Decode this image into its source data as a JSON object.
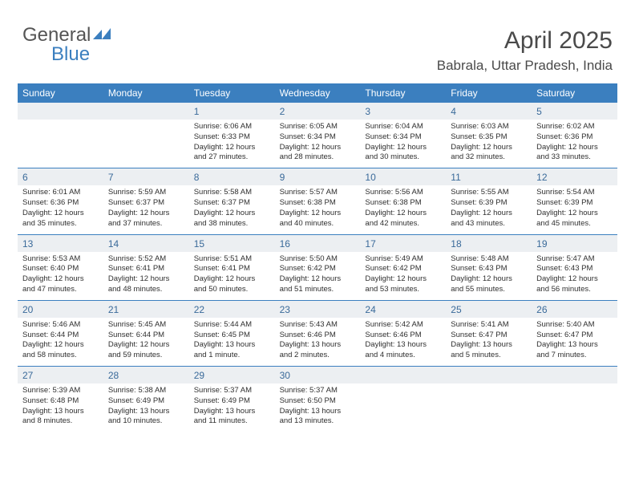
{
  "logo": {
    "text1": "General",
    "text2": "Blue",
    "icon_color": "#3b7fbf"
  },
  "header": {
    "title": "April 2025",
    "subtitle": "Babrala, Uttar Pradesh, India"
  },
  "colors": {
    "header_bar": "#3b7fbf",
    "num_bg": "#eceff2",
    "daynum_text": "#3a6a9a",
    "body_text": "#2f2f2f",
    "title_text": "#4a4a4a"
  },
  "day_headers": [
    "Sunday",
    "Monday",
    "Tuesday",
    "Wednesday",
    "Thursday",
    "Friday",
    "Saturday"
  ],
  "weeks": [
    {
      "nums": [
        "",
        "",
        "1",
        "2",
        "3",
        "4",
        "5"
      ],
      "cells": [
        null,
        null,
        {
          "sunrise": "6:06 AM",
          "sunset": "6:33 PM",
          "daylight": "12 hours and 27 minutes."
        },
        {
          "sunrise": "6:05 AM",
          "sunset": "6:34 PM",
          "daylight": "12 hours and 28 minutes."
        },
        {
          "sunrise": "6:04 AM",
          "sunset": "6:34 PM",
          "daylight": "12 hours and 30 minutes."
        },
        {
          "sunrise": "6:03 AM",
          "sunset": "6:35 PM",
          "daylight": "12 hours and 32 minutes."
        },
        {
          "sunrise": "6:02 AM",
          "sunset": "6:36 PM",
          "daylight": "12 hours and 33 minutes."
        }
      ]
    },
    {
      "nums": [
        "6",
        "7",
        "8",
        "9",
        "10",
        "11",
        "12"
      ],
      "cells": [
        {
          "sunrise": "6:01 AM",
          "sunset": "6:36 PM",
          "daylight": "12 hours and 35 minutes."
        },
        {
          "sunrise": "5:59 AM",
          "sunset": "6:37 PM",
          "daylight": "12 hours and 37 minutes."
        },
        {
          "sunrise": "5:58 AM",
          "sunset": "6:37 PM",
          "daylight": "12 hours and 38 minutes."
        },
        {
          "sunrise": "5:57 AM",
          "sunset": "6:38 PM",
          "daylight": "12 hours and 40 minutes."
        },
        {
          "sunrise": "5:56 AM",
          "sunset": "6:38 PM",
          "daylight": "12 hours and 42 minutes."
        },
        {
          "sunrise": "5:55 AM",
          "sunset": "6:39 PM",
          "daylight": "12 hours and 43 minutes."
        },
        {
          "sunrise": "5:54 AM",
          "sunset": "6:39 PM",
          "daylight": "12 hours and 45 minutes."
        }
      ]
    },
    {
      "nums": [
        "13",
        "14",
        "15",
        "16",
        "17",
        "18",
        "19"
      ],
      "cells": [
        {
          "sunrise": "5:53 AM",
          "sunset": "6:40 PM",
          "daylight": "12 hours and 47 minutes."
        },
        {
          "sunrise": "5:52 AM",
          "sunset": "6:41 PM",
          "daylight": "12 hours and 48 minutes."
        },
        {
          "sunrise": "5:51 AM",
          "sunset": "6:41 PM",
          "daylight": "12 hours and 50 minutes."
        },
        {
          "sunrise": "5:50 AM",
          "sunset": "6:42 PM",
          "daylight": "12 hours and 51 minutes."
        },
        {
          "sunrise": "5:49 AM",
          "sunset": "6:42 PM",
          "daylight": "12 hours and 53 minutes."
        },
        {
          "sunrise": "5:48 AM",
          "sunset": "6:43 PM",
          "daylight": "12 hours and 55 minutes."
        },
        {
          "sunrise": "5:47 AM",
          "sunset": "6:43 PM",
          "daylight": "12 hours and 56 minutes."
        }
      ]
    },
    {
      "nums": [
        "20",
        "21",
        "22",
        "23",
        "24",
        "25",
        "26"
      ],
      "cells": [
        {
          "sunrise": "5:46 AM",
          "sunset": "6:44 PM",
          "daylight": "12 hours and 58 minutes."
        },
        {
          "sunrise": "5:45 AM",
          "sunset": "6:44 PM",
          "daylight": "12 hours and 59 minutes."
        },
        {
          "sunrise": "5:44 AM",
          "sunset": "6:45 PM",
          "daylight": "13 hours and 1 minute."
        },
        {
          "sunrise": "5:43 AM",
          "sunset": "6:46 PM",
          "daylight": "13 hours and 2 minutes."
        },
        {
          "sunrise": "5:42 AM",
          "sunset": "6:46 PM",
          "daylight": "13 hours and 4 minutes."
        },
        {
          "sunrise": "5:41 AM",
          "sunset": "6:47 PM",
          "daylight": "13 hours and 5 minutes."
        },
        {
          "sunrise": "5:40 AM",
          "sunset": "6:47 PM",
          "daylight": "13 hours and 7 minutes."
        }
      ]
    },
    {
      "nums": [
        "27",
        "28",
        "29",
        "30",
        "",
        "",
        ""
      ],
      "cells": [
        {
          "sunrise": "5:39 AM",
          "sunset": "6:48 PM",
          "daylight": "13 hours and 8 minutes."
        },
        {
          "sunrise": "5:38 AM",
          "sunset": "6:49 PM",
          "daylight": "13 hours and 10 minutes."
        },
        {
          "sunrise": "5:37 AM",
          "sunset": "6:49 PM",
          "daylight": "13 hours and 11 minutes."
        },
        {
          "sunrise": "5:37 AM",
          "sunset": "6:50 PM",
          "daylight": "13 hours and 13 minutes."
        },
        null,
        null,
        null
      ]
    }
  ],
  "labels": {
    "sunrise": "Sunrise:",
    "sunset": "Sunset:",
    "daylight": "Daylight:"
  }
}
